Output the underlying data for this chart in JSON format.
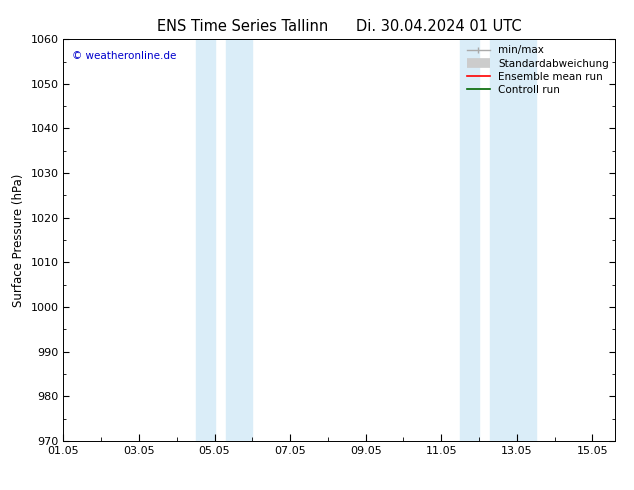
{
  "title": "ENS Time Series Tallinn      Di. 30.04.2024 01 UTC",
  "ylabel": "Surface Pressure (hPa)",
  "ylim": [
    970,
    1060
  ],
  "yticks": [
    970,
    980,
    990,
    1000,
    1010,
    1020,
    1030,
    1040,
    1050,
    1060
  ],
  "xlim_days": [
    0,
    14.6
  ],
  "xtick_labels": [
    "01.05",
    "03.05",
    "05.05",
    "07.05",
    "09.05",
    "11.05",
    "13.05",
    "15.05"
  ],
  "xtick_positions": [
    0,
    2,
    4,
    6,
    8,
    10,
    12,
    14
  ],
  "shaded_bands": [
    {
      "xstart": 3.5,
      "xend": 4.0
    },
    {
      "xstart": 4.3,
      "xend": 5.0
    },
    {
      "xstart": 10.5,
      "xend": 11.0
    },
    {
      "xstart": 11.3,
      "xend": 12.5
    }
  ],
  "shaded_color": "#daedf8",
  "watermark": "© weatheronline.de",
  "watermark_color": "#0000cc",
  "bg_color": "#ffffff",
  "title_fontsize": 10.5,
  "label_fontsize": 8.5,
  "tick_fontsize": 8
}
